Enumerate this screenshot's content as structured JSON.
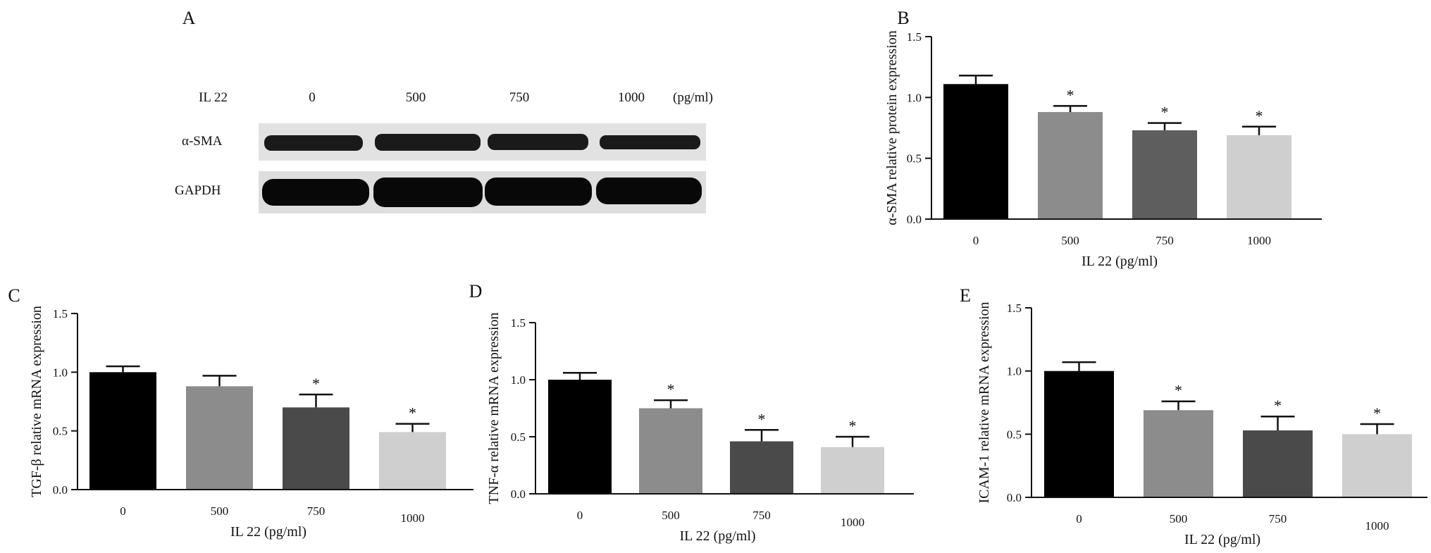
{
  "figure": {
    "panel_letters": [
      "A",
      "B",
      "C",
      "D",
      "E"
    ],
    "western_blot": {
      "label": "A",
      "treatment_label": "IL 22",
      "doses": [
        "0",
        "500",
        "750",
        "1000"
      ],
      "unit": "(pg/ml)",
      "rows": [
        "α-SMA",
        "GAPDH"
      ]
    }
  },
  "chart_data": [
    {
      "type": "bar",
      "panel": "B",
      "categories": [
        "0",
        "500",
        "750",
        "1000"
      ],
      "values": [
        1.11,
        0.88,
        0.73,
        0.69
      ],
      "errors": [
        0.07,
        0.05,
        0.06,
        0.07
      ],
      "significance": [
        "",
        "*",
        "*",
        "*"
      ],
      "colors": [
        "#000000",
        "#8c8c8c",
        "#5e5e5e",
        "#cfcfcf"
      ],
      "ylim": [
        0,
        1.5
      ],
      "yticks": [
        "0.0",
        "0.5",
        "1.0",
        "1.5"
      ],
      "xlabel": "IL 22  (pg/ml)",
      "ylabel": "α-SMA  relative  protein  expression"
    },
    {
      "type": "bar",
      "panel": "C",
      "categories": [
        "0",
        "500",
        "750",
        "1000"
      ],
      "values": [
        1.0,
        0.88,
        0.7,
        0.49
      ],
      "errors": [
        0.05,
        0.09,
        0.11,
        0.07
      ],
      "significance": [
        "",
        "",
        "*",
        "*"
      ],
      "colors": [
        "#000000",
        "#8c8c8c",
        "#4a4a4a",
        "#cfcfcf"
      ],
      "ylim": [
        0,
        1.5
      ],
      "yticks": [
        "0.0",
        "0.5",
        "1.0",
        "1.5"
      ],
      "xlabel": "IL 22  (pg/ml)",
      "ylabel": "TGF-β  relative  mRNA  expression"
    },
    {
      "type": "bar",
      "panel": "D",
      "categories": [
        "0",
        "500",
        "750",
        "1000"
      ],
      "values": [
        1.0,
        0.75,
        0.46,
        0.41
      ],
      "errors": [
        0.06,
        0.07,
        0.1,
        0.09
      ],
      "significance": [
        "",
        "*",
        "*",
        "*"
      ],
      "colors": [
        "#000000",
        "#8c8c8c",
        "#4a4a4a",
        "#cfcfcf"
      ],
      "ylim": [
        0,
        1.5
      ],
      "yticks": [
        "0.0",
        "0.5",
        "1.0",
        "1.5"
      ],
      "xlabel": "IL 22  (pg/ml)",
      "ylabel": "TNF-α  relative  mRNA  expression"
    },
    {
      "type": "bar",
      "panel": "E",
      "categories": [
        "0",
        "500",
        "750",
        "1000"
      ],
      "values": [
        1.0,
        0.69,
        0.53,
        0.5
      ],
      "errors": [
        0.07,
        0.07,
        0.11,
        0.08
      ],
      "significance": [
        "",
        "*",
        "*",
        "*"
      ],
      "colors": [
        "#000000",
        "#8c8c8c",
        "#4a4a4a",
        "#cfcfcf"
      ],
      "ylim": [
        0,
        1.5
      ],
      "yticks": [
        "0.0",
        "0.5",
        "1.0",
        "1.5"
      ],
      "xlabel": "IL 22  (pg/ml)",
      "ylabel": "ICAM-1  relative  mRNA  expression"
    }
  ]
}
